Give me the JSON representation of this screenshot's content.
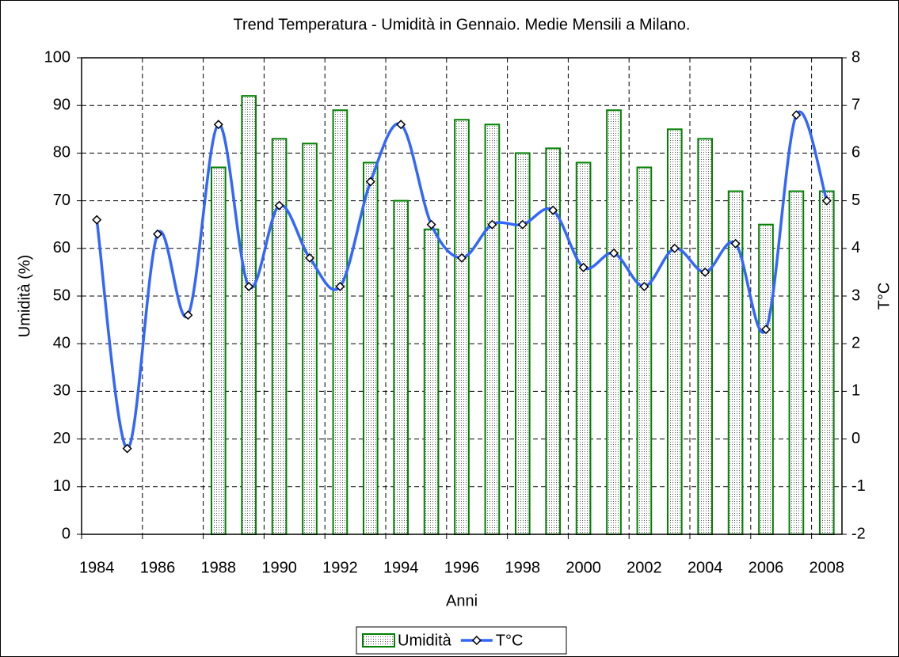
{
  "chart_data": {
    "type": "combo",
    "title": "Trend Temperatura - Umidità in Gennaio.  Medie Mensili a Milano.",
    "x_label": "Anni",
    "y_label": "Umidità (%)",
    "y2_label": "T°C",
    "categories": [
      "1984",
      null,
      "1986",
      null,
      "1988",
      null,
      "1990",
      null,
      "1992",
      null,
      "1994",
      null,
      "1996",
      null,
      "1998",
      null,
      "2000",
      null,
      "2002",
      null,
      "2004",
      null,
      "2006",
      null,
      "2008"
    ],
    "series": [
      {
        "name": "Umidità",
        "type": "bar",
        "color": "#008000",
        "values": [
          null,
          null,
          null,
          null,
          77,
          92,
          83,
          82,
          89,
          78,
          70,
          64,
          87,
          86,
          80,
          81,
          78,
          89,
          77,
          85,
          83,
          72,
          65,
          72,
          72
        ]
      },
      {
        "name": "T°C",
        "type": "line",
        "color": "#3366ff",
        "axis": "y2",
        "values": [
          4.6,
          -0.2,
          4.3,
          2.6,
          6.6,
          3.2,
          4.9,
          3.8,
          3.2,
          5.4,
          6.6,
          4.5,
          3.8,
          4.5,
          4.5,
          4.8,
          3.6,
          3.9,
          3.2,
          4.0,
          3.5,
          4.1,
          2.3,
          6.8,
          5.0
        ]
      }
    ],
    "ylim": [
      0,
      100
    ],
    "yticks": [
      0,
      10,
      20,
      30,
      40,
      50,
      60,
      70,
      80,
      90,
      100
    ],
    "y2lim": [
      -2,
      8
    ],
    "y2ticks": [
      -2,
      -1,
      0,
      1,
      2,
      3,
      4,
      5,
      6,
      7,
      8
    ],
    "grid": true,
    "legend": "bottom"
  }
}
